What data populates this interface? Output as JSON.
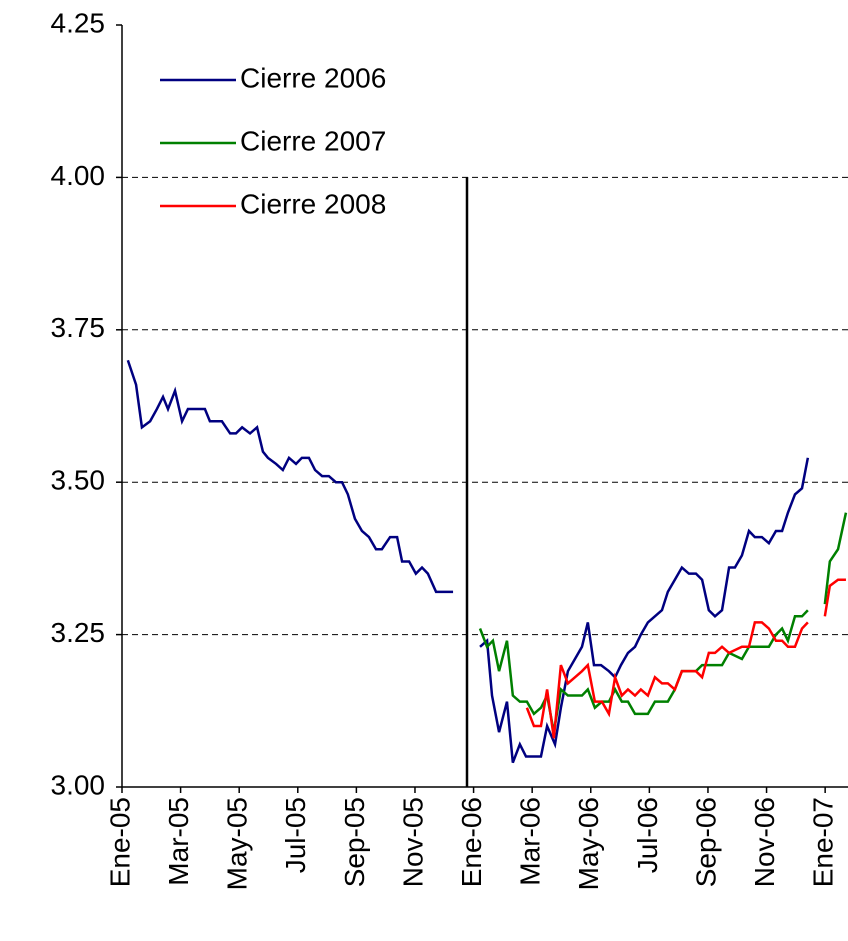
{
  "chart_data": {
    "type": "line",
    "xlim": [
      0,
      24.78
    ],
    "xticks": [
      {
        "value": 0,
        "label": "Ene-05"
      },
      {
        "value": 2,
        "label": "Mar-05"
      },
      {
        "value": 4,
        "label": "May-05"
      },
      {
        "value": 6,
        "label": "Jul-05"
      },
      {
        "value": 8,
        "label": "Sep-05"
      },
      {
        "value": 10,
        "label": "Nov-05"
      },
      {
        "value": 12,
        "label": "Ene-06"
      },
      {
        "value": 14,
        "label": "Mar-06"
      },
      {
        "value": 16,
        "label": "May-06"
      },
      {
        "value": 18,
        "label": "Jul-06"
      },
      {
        "value": 20,
        "label": "Sep-06"
      },
      {
        "value": 22,
        "label": "Nov-06"
      },
      {
        "value": 24,
        "label": "Ene-07"
      }
    ],
    "ylim": [
      3,
      4.25
    ],
    "yticks": [
      {
        "value": 3,
        "label": "3.00"
      },
      {
        "value": 3.25,
        "label": "3.25"
      },
      {
        "value": 3.5,
        "label": "3.50"
      },
      {
        "value": 3.75,
        "label": "3.75"
      },
      {
        "value": 4,
        "label": "4.00"
      },
      {
        "value": 4.25,
        "label": "4.25"
      }
    ],
    "grid": true,
    "legend": "upper left",
    "series": [
      {
        "name": "Cierre 2006",
        "color": "#000080",
        "x": [
          0.2,
          0.48,
          0.68,
          0.96,
          1.19,
          1.4,
          1.57,
          1.81,
          2.05,
          2.25,
          2.49,
          2.83,
          3.0,
          3.41,
          3.69,
          3.89,
          4.1,
          4.37,
          4.61,
          4.81,
          4.98,
          5.26,
          5.49,
          5.7,
          5.94,
          6.14,
          6.38,
          6.59,
          6.83,
          7.06,
          7.3,
          7.51,
          7.71,
          7.95,
          8.19,
          8.43,
          8.67,
          8.87,
          9.15,
          9.39,
          9.56,
          9.8,
          10.03,
          10.24,
          10.44,
          10.72,
          11.06,
          11.3,
          11.75,
          12.22,
          12.46,
          12.63,
          12.87,
          13.14,
          13.34,
          13.58,
          13.79,
          14.06,
          14.3,
          14.51,
          14.78,
          14.98,
          15.22,
          15.46,
          15.7,
          15.9,
          16.11,
          16.35,
          16.62,
          16.83,
          17.03,
          17.27,
          17.51,
          17.71,
          17.95,
          18.19,
          18.43,
          18.63,
          18.87,
          19.11,
          19.35,
          19.59,
          19.8,
          20.03,
          20.24,
          20.48,
          20.72,
          20.92,
          21.16,
          21.4,
          21.6,
          21.84,
          22.08,
          22.32,
          22.53,
          22.73,
          22.97,
          23.21,
          23.41
        ],
        "values": [
          3.7,
          3.66,
          3.59,
          3.6,
          3.62,
          3.64,
          3.62,
          3.65,
          3.6,
          3.62,
          3.62,
          3.62,
          3.6,
          3.6,
          3.58,
          3.58,
          3.59,
          3.58,
          3.59,
          3.55,
          3.54,
          3.53,
          3.52,
          3.54,
          3.53,
          3.54,
          3.54,
          3.52,
          3.51,
          3.51,
          3.5,
          3.5,
          3.48,
          3.44,
          3.42,
          3.41,
          3.39,
          3.39,
          3.41,
          3.41,
          3.37,
          3.37,
          3.35,
          3.36,
          3.35,
          3.32,
          3.32,
          3.32,
          null,
          3.23,
          3.24,
          3.15,
          3.09,
          3.14,
          3.04,
          3.07,
          3.05,
          3.05,
          3.05,
          3.1,
          3.07,
          3.13,
          3.19,
          3.21,
          3.23,
          3.27,
          3.2,
          3.2,
          3.19,
          3.18,
          3.2,
          3.22,
          3.23,
          3.25,
          3.27,
          3.28,
          3.29,
          3.32,
          3.34,
          3.36,
          3.35,
          3.35,
          3.34,
          3.29,
          3.28,
          3.29,
          3.36,
          3.36,
          3.38,
          3.42,
          3.41,
          3.41,
          3.4,
          3.42,
          3.42,
          3.45,
          3.48,
          3.49,
          3.54
        ]
      },
      {
        "name": "Cierre 2007",
        "color": "#008000",
        "x": [
          12.22,
          12.46,
          12.66,
          12.87,
          13.14,
          13.34,
          13.58,
          13.82,
          14.06,
          14.3,
          14.51,
          14.74,
          14.98,
          15.22,
          15.46,
          15.7,
          15.9,
          16.14,
          16.38,
          16.62,
          16.83,
          17.06,
          17.27,
          17.51,
          17.95,
          18.19,
          18.63,
          18.87,
          19.11,
          19.59,
          19.8,
          20.48,
          20.72,
          21.16,
          21.4,
          22.08,
          22.32,
          22.53,
          22.73,
          22.97,
          23.21,
          23.41,
          23.7,
          23.99,
          24.16,
          24.44,
          24.71
        ],
        "values": [
          3.26,
          3.23,
          3.24,
          3.19,
          3.24,
          3.15,
          3.14,
          3.14,
          3.12,
          3.13,
          3.15,
          3.09,
          3.16,
          3.15,
          3.15,
          3.15,
          3.16,
          3.13,
          3.14,
          3.14,
          3.16,
          3.14,
          3.14,
          3.12,
          3.12,
          3.14,
          3.14,
          3.16,
          3.19,
          3.19,
          3.2,
          3.2,
          3.22,
          3.21,
          3.23,
          3.23,
          3.25,
          3.26,
          3.24,
          3.28,
          3.28,
          3.29,
          null,
          3.3,
          3.37,
          3.39,
          3.45
        ]
      },
      {
        "name": "Cierre 2008",
        "color": "#ff0000",
        "x": [
          13.82,
          14.06,
          14.3,
          14.51,
          14.74,
          14.98,
          15.22,
          15.46,
          15.7,
          15.9,
          16.14,
          16.38,
          16.62,
          16.83,
          17.06,
          17.27,
          17.51,
          17.71,
          17.95,
          18.19,
          18.43,
          18.63,
          18.87,
          19.11,
          19.59,
          19.8,
          20.03,
          20.24,
          20.48,
          20.72,
          21.16,
          21.4,
          21.6,
          21.84,
          22.08,
          22.32,
          22.53,
          22.73,
          22.97,
          23.21,
          23.41,
          23.7,
          23.99,
          24.16,
          24.44,
          24.71
        ],
        "values": [
          3.13,
          3.1,
          3.1,
          3.16,
          3.08,
          3.2,
          3.17,
          3.18,
          3.19,
          3.2,
          3.14,
          3.14,
          3.12,
          3.18,
          3.15,
          3.16,
          3.15,
          3.16,
          3.15,
          3.18,
          3.17,
          3.17,
          3.16,
          3.19,
          3.19,
          3.18,
          3.22,
          3.22,
          3.23,
          3.22,
          3.23,
          3.23,
          3.27,
          3.27,
          3.26,
          3.24,
          3.24,
          3.23,
          3.23,
          3.26,
          3.27,
          null,
          3.28,
          3.33,
          3.34,
          3.34
        ]
      }
    ]
  }
}
